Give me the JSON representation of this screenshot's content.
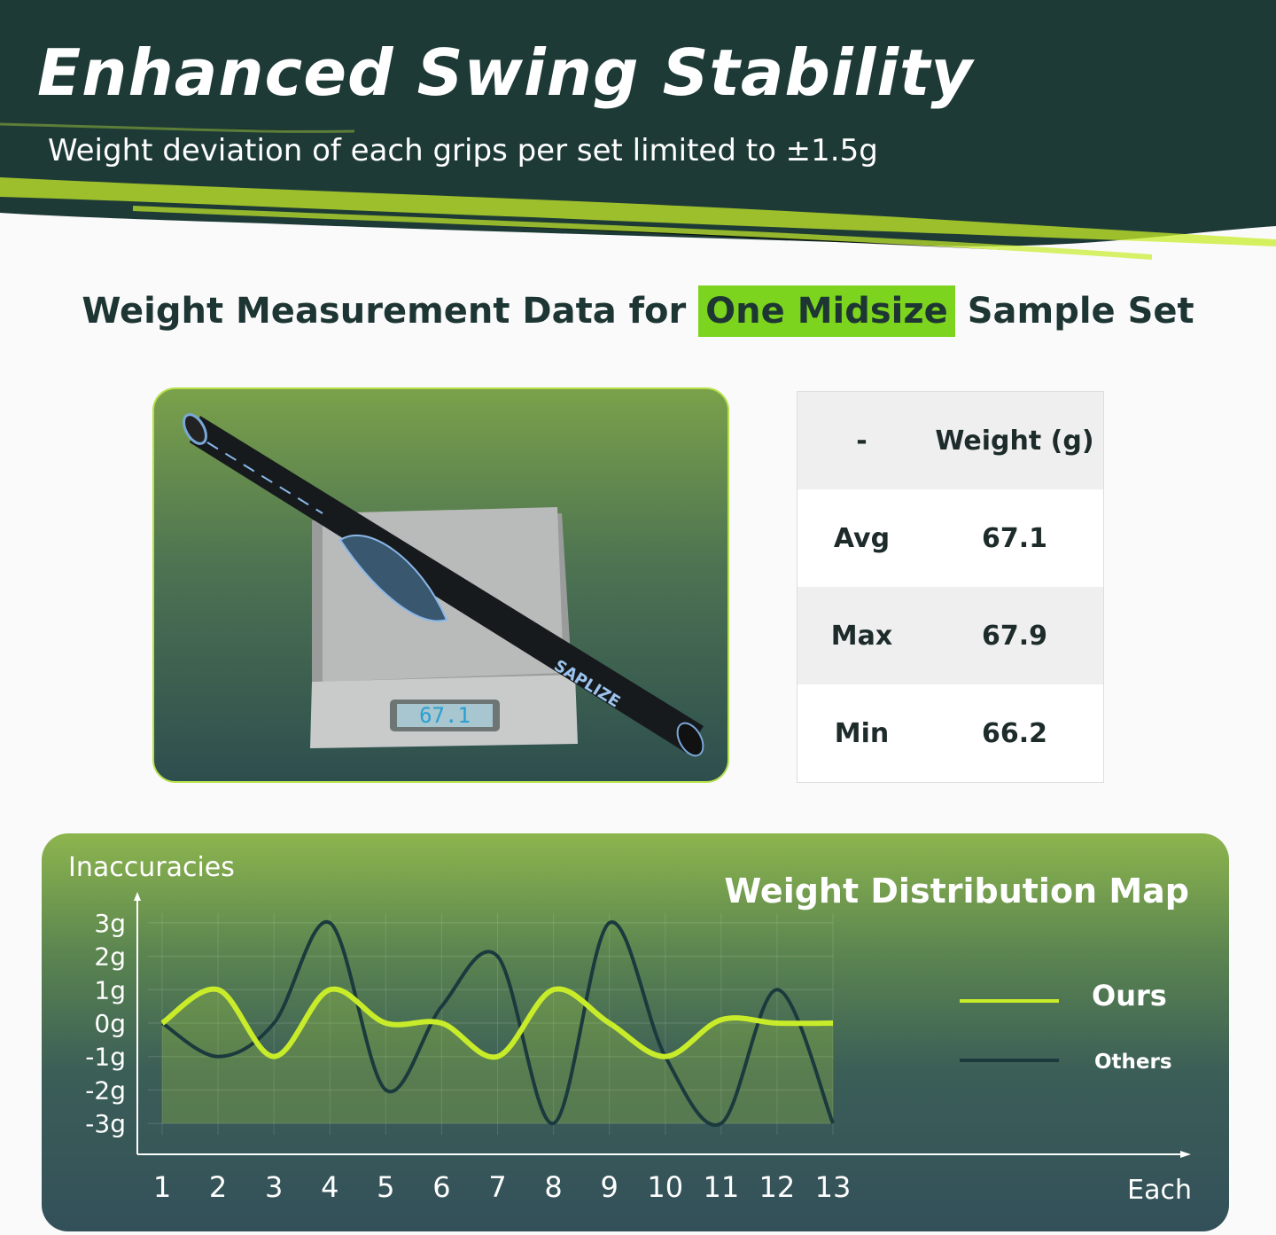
{
  "header": {
    "title": "Enhanced Swing Stability",
    "subtitle": "Weight deviation of each grips per set limited to ±1.5g"
  },
  "heading": {
    "before": "Weight Measurement Data for ",
    "highlight": "One Midsize",
    "after": " Sample Set"
  },
  "colors": {
    "dark": "#1d3a36",
    "accent": "#c8ec2a",
    "highlight": "#7cd41e",
    "others": "#1b3a3e"
  },
  "photo": {
    "scale_display": "67.1",
    "brand": "SAPLIZE"
  },
  "table": {
    "headers": [
      "-",
      "Weight (g)"
    ],
    "rows": [
      [
        "Avg",
        "67.1"
      ],
      [
        "Max",
        "67.9"
      ],
      [
        "Min",
        "66.2"
      ]
    ]
  },
  "chart_data": {
    "type": "line",
    "title": "Weight Distribution Map",
    "xlabel": "Each",
    "ylabel": "Inaccuracies",
    "x": [
      1,
      2,
      3,
      4,
      5,
      6,
      7,
      8,
      9,
      10,
      11,
      12,
      13
    ],
    "y_ticks": [
      "3g",
      "2g",
      "1g",
      "0g",
      "-1g",
      "-2g",
      "-3g"
    ],
    "ylim": [
      -3,
      3
    ],
    "grid": true,
    "legend": "right",
    "series": [
      {
        "name": "Ours",
        "color": "#c8ec2a",
        "values": [
          0,
          1,
          -1,
          1,
          0,
          0,
          -1,
          1,
          0,
          -1,
          0.1,
          0,
          0
        ]
      },
      {
        "name": "Others",
        "color": "#1b3a3e",
        "values": [
          0,
          -1,
          0,
          3,
          -2,
          0.5,
          2,
          -3,
          3,
          -1,
          -3,
          1,
          -3
        ]
      }
    ]
  }
}
